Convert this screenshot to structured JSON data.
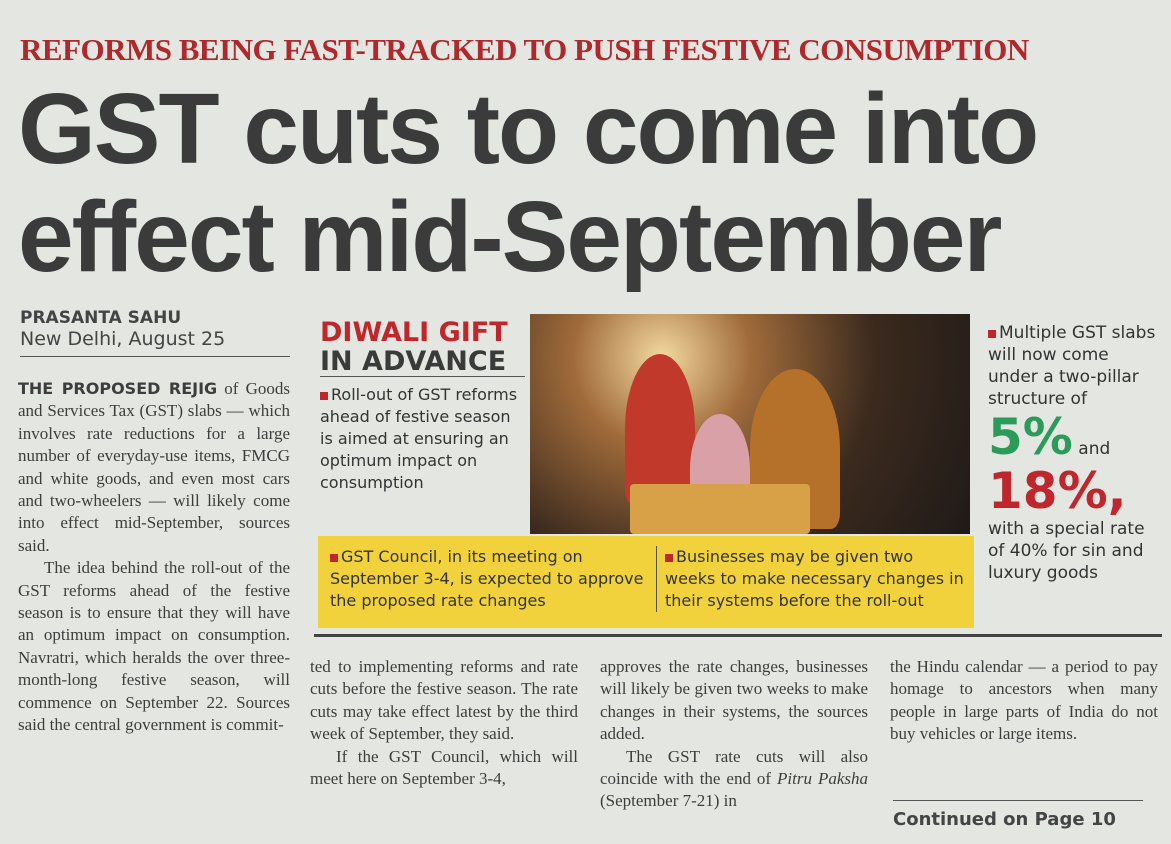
{
  "kicker": "REFORMS BEING FAST-TRACKED TO PUSH FESTIVE CONSUMPTION",
  "headline": {
    "line1": "GST cuts to come into",
    "line2": "effect mid-September"
  },
  "byline": {
    "author": "PRASANTA SAHU",
    "dateline": "New Delhi, August 25"
  },
  "body": {
    "lead": "THE PROPOSED REJIG",
    "p1": " of Goods and Services Tax (GST) slabs — which involves rate reductions for a large number of everyday-use items, FMCG and white goods, and even most cars and two-wheelers — will likely come into effect mid-September, sources said.",
    "p2": "The idea behind the roll-out of the GST reforms ahead of the festive season is to ensure that they will have an optimum impact on consumption. Navratri, which heralds the over three-month-long festive season, will commence on September 22. Sources said the central government is commit-",
    "c2": "ted to implementing reforms and rate cuts before the festive season. The rate cuts may take effect latest by the third week of September, they said.",
    "c2b": "If the GST Council, which will meet here on September 3-4,",
    "c3": "approves the rate changes, businesses will likely be given two weeks to make changes in their systems, the sources added.",
    "c3b_pre": "The GST rate cuts will also coincide with the end of ",
    "c3b_em": "Pitru Paksha",
    "c3b_post": " (September 7-21) in",
    "c4": "the Hindu calendar — a period to pay homage to ancestors when many people in large parts of India do not buy vehicles or large items.",
    "continued": "Continued on Page 10"
  },
  "infographic": {
    "title1": "DIWALI GIFT",
    "title2": "IN ADVANCE",
    "bullet1": "Roll-out of GST reforms ahead of festive season is aimed at ensuring an optimum impact on consumption",
    "bullet2": "GST Council, in its meeting on September 3-4, is expected to approve the proposed rate changes",
    "bullet3": "Businesses may be given two weeks to make necessary changes in their systems before the roll-out",
    "right_text": "Multiple GST slabs will now come under a two-pillar structure of",
    "rate1": "5%",
    "and": "and",
    "rate2": "18%,",
    "right_tail": "with a special rate of 40% for sin and luxury goods",
    "colors": {
      "red": "#c0272d",
      "green": "#2b9b5a",
      "yellow": "#f1d23c"
    }
  }
}
